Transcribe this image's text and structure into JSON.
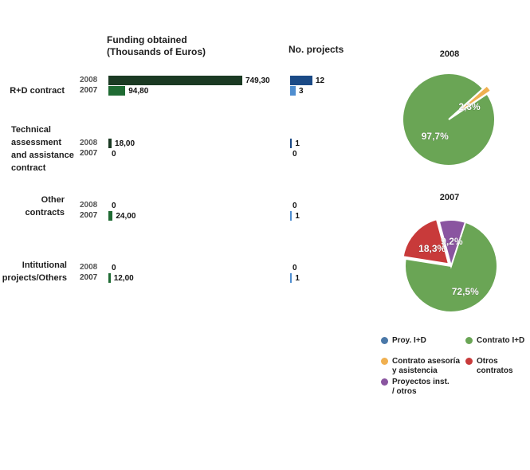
{
  "headers": {
    "funding": "Funding obtained\n(Thousands of Euros)",
    "projects": "No. projects"
  },
  "colors": {
    "funding_2008": "#1b3a23",
    "funding_2007": "#1f6b33",
    "projects_2008": "#1b4a86",
    "projects_2007": "#4f8ed0",
    "proy_id": "#4a78a8",
    "contrato_id": "#6aa555",
    "contrato_asesoria": "#f0b050",
    "otros": "#c83a3a",
    "proyectos_inst": "#8a55a0"
  },
  "chart_data": [
    {
      "type": "bar",
      "title": "Funding obtained\n(Thousands of Euros)",
      "categories": [
        "R+D contract",
        "Technical\nassessment\nand assistance\ncontract",
        "Other\ncontracts",
        "Intitutional\nprojects/Others"
      ],
      "series": [
        {
          "name": "2008",
          "values": [
            749.3,
            18.0,
            0,
            0
          ],
          "labels": [
            "749,30",
            "18,00",
            "0",
            "0"
          ]
        },
        {
          "name": "2007",
          "values": [
            94.8,
            0,
            24.0,
            12.0
          ],
          "labels": [
            "94,80",
            "0",
            "24,00",
            "12,00"
          ]
        }
      ]
    },
    {
      "type": "bar",
      "title": "No. projects",
      "categories": [
        "R+D contract",
        "Technical\nassessment\nand assistance\ncontract",
        "Other\ncontracts",
        "Intitutional\nprojects/Others"
      ],
      "series": [
        {
          "name": "2008",
          "values": [
            12,
            1,
            0,
            0
          ],
          "labels": [
            "12",
            "1",
            "0",
            "0"
          ]
        },
        {
          "name": "2007",
          "values": [
            3,
            0,
            1,
            1
          ],
          "labels": [
            "3",
            "0",
            "1",
            "1"
          ]
        }
      ]
    },
    {
      "type": "pie",
      "title": "2008",
      "slices": [
        {
          "name": "Contrato I+D",
          "value": 97.7,
          "label": "97,7%",
          "color": "#6aa555"
        },
        {
          "name": "Contrato asesoría y asistencia",
          "value": 2.3,
          "label": "2,3%",
          "color": "#f0b050"
        }
      ]
    },
    {
      "type": "pie",
      "title": "2007",
      "slices": [
        {
          "name": "Contrato I+D",
          "value": 72.5,
          "label": "72,5%",
          "color": "#6aa555"
        },
        {
          "name": "Otros contratos",
          "value": 18.3,
          "label": "18,3%",
          "color": "#c83a3a"
        },
        {
          "name": "Proyectos inst. / otros",
          "value": 9.2,
          "label": "9,2%",
          "color": "#8a55a0"
        }
      ]
    }
  ],
  "legend": [
    {
      "label": "Proy. I+D",
      "color": "#4a78a8"
    },
    {
      "label": "Contrato I+D",
      "color": "#6aa555"
    },
    {
      "label": "Contrato asesoría\ny asistencia",
      "color": "#f0b050"
    },
    {
      "label": "Otros\ncontratos",
      "color": "#c83a3a"
    },
    {
      "label": "Proyectos inst.\n/ otros",
      "color": "#8a55a0"
    }
  ]
}
